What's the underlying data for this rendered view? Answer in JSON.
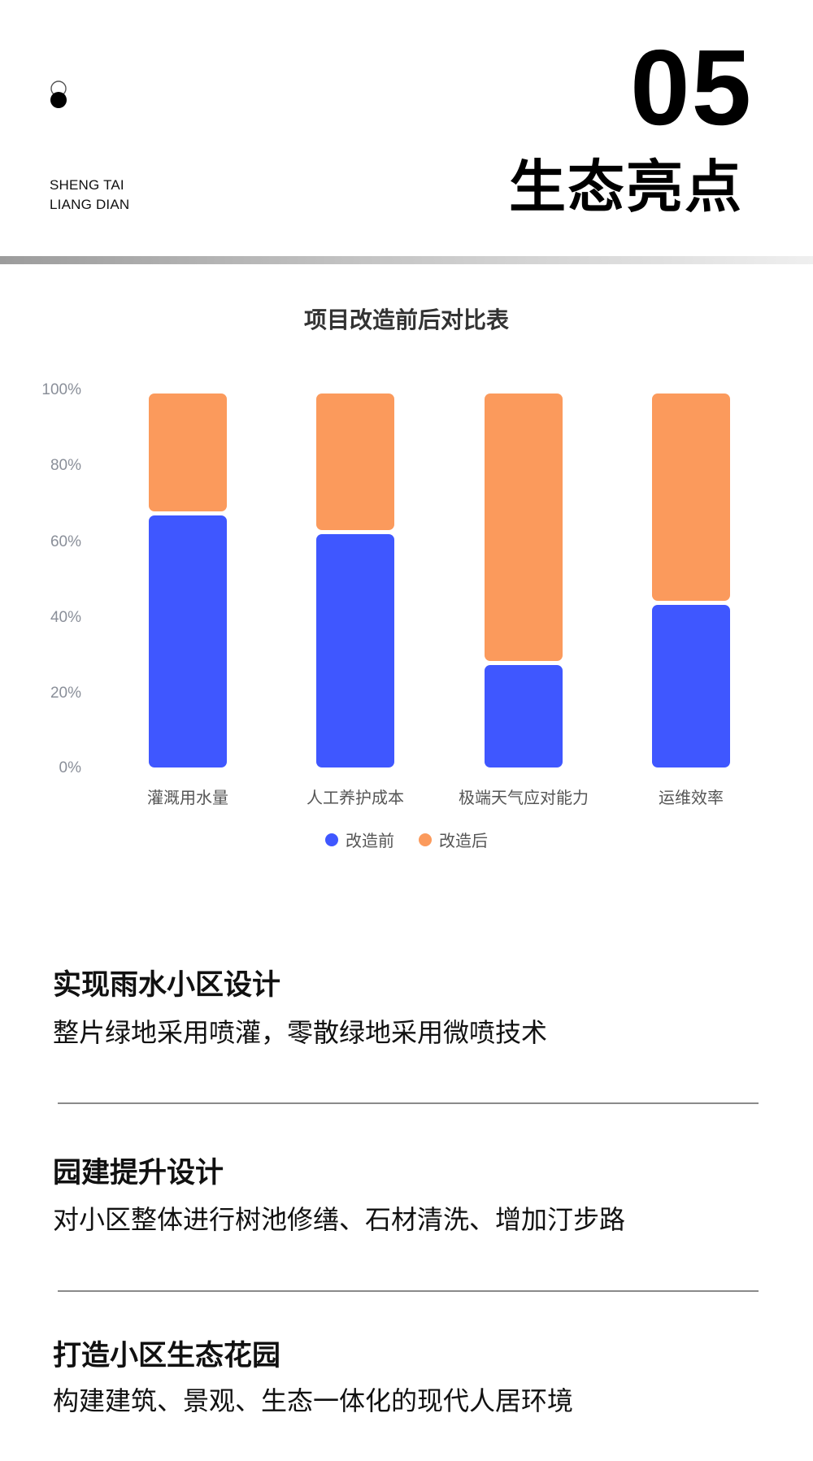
{
  "header": {
    "pinyin_line1": "SHENG TAI",
    "pinyin_line2": "LIANG DIAN",
    "section_number": "05",
    "section_title": "生态亮点",
    "logo_icon": "stacked-circles-icon"
  },
  "colors": {
    "before": "#3f57ff",
    "after": "#fb9a5c",
    "axis_text": "#8a8f99",
    "divider": "#8a8a8a"
  },
  "chart_data": {
    "type": "bar",
    "stacked": true,
    "title": "项目改造前后对比表",
    "categories": [
      "灌溉用水量",
      "人工养护成本",
      "极端天气应对能力",
      "运维效率"
    ],
    "series": [
      {
        "name": "改造前",
        "color": "#3f57ff",
        "values": [
          68,
          63,
          28,
          44
        ]
      },
      {
        "name": "改造后",
        "color": "#fb9a5c",
        "values": [
          32,
          37,
          72,
          56
        ]
      }
    ],
    "xlabel": "",
    "ylabel": "",
    "ylim": [
      0,
      100
    ],
    "yticks": [
      "0%",
      "20%",
      "40%",
      "60%",
      "80%",
      "100%"
    ],
    "y_unit": "%",
    "grid": false,
    "legend_position": "bottom"
  },
  "chart": {
    "title": "项目改造前后对比表",
    "yticks": [
      "0%",
      "20%",
      "40%",
      "60%",
      "80%",
      "100%"
    ],
    "categories": [
      "灌溉用水量",
      "人工养护成本",
      "极端天气应对能力",
      "运维效率"
    ],
    "legend": [
      {
        "label": "改造前",
        "icon": "blue-dot-icon"
      },
      {
        "label": "改造后",
        "icon": "orange-dot-icon"
      }
    ]
  },
  "sections": [
    {
      "heading": "实现雨水小区设计",
      "text": "整片绿地采用喷灌，零散绿地采用微喷技术"
    },
    {
      "heading": "园建提升设计",
      "text": "对小区整体进行树池修缮、石材清洗、增加汀步路"
    },
    {
      "heading": "打造小区生态花园",
      "text": "构建建筑、景观、生态一体化的现代人居环境"
    }
  ]
}
